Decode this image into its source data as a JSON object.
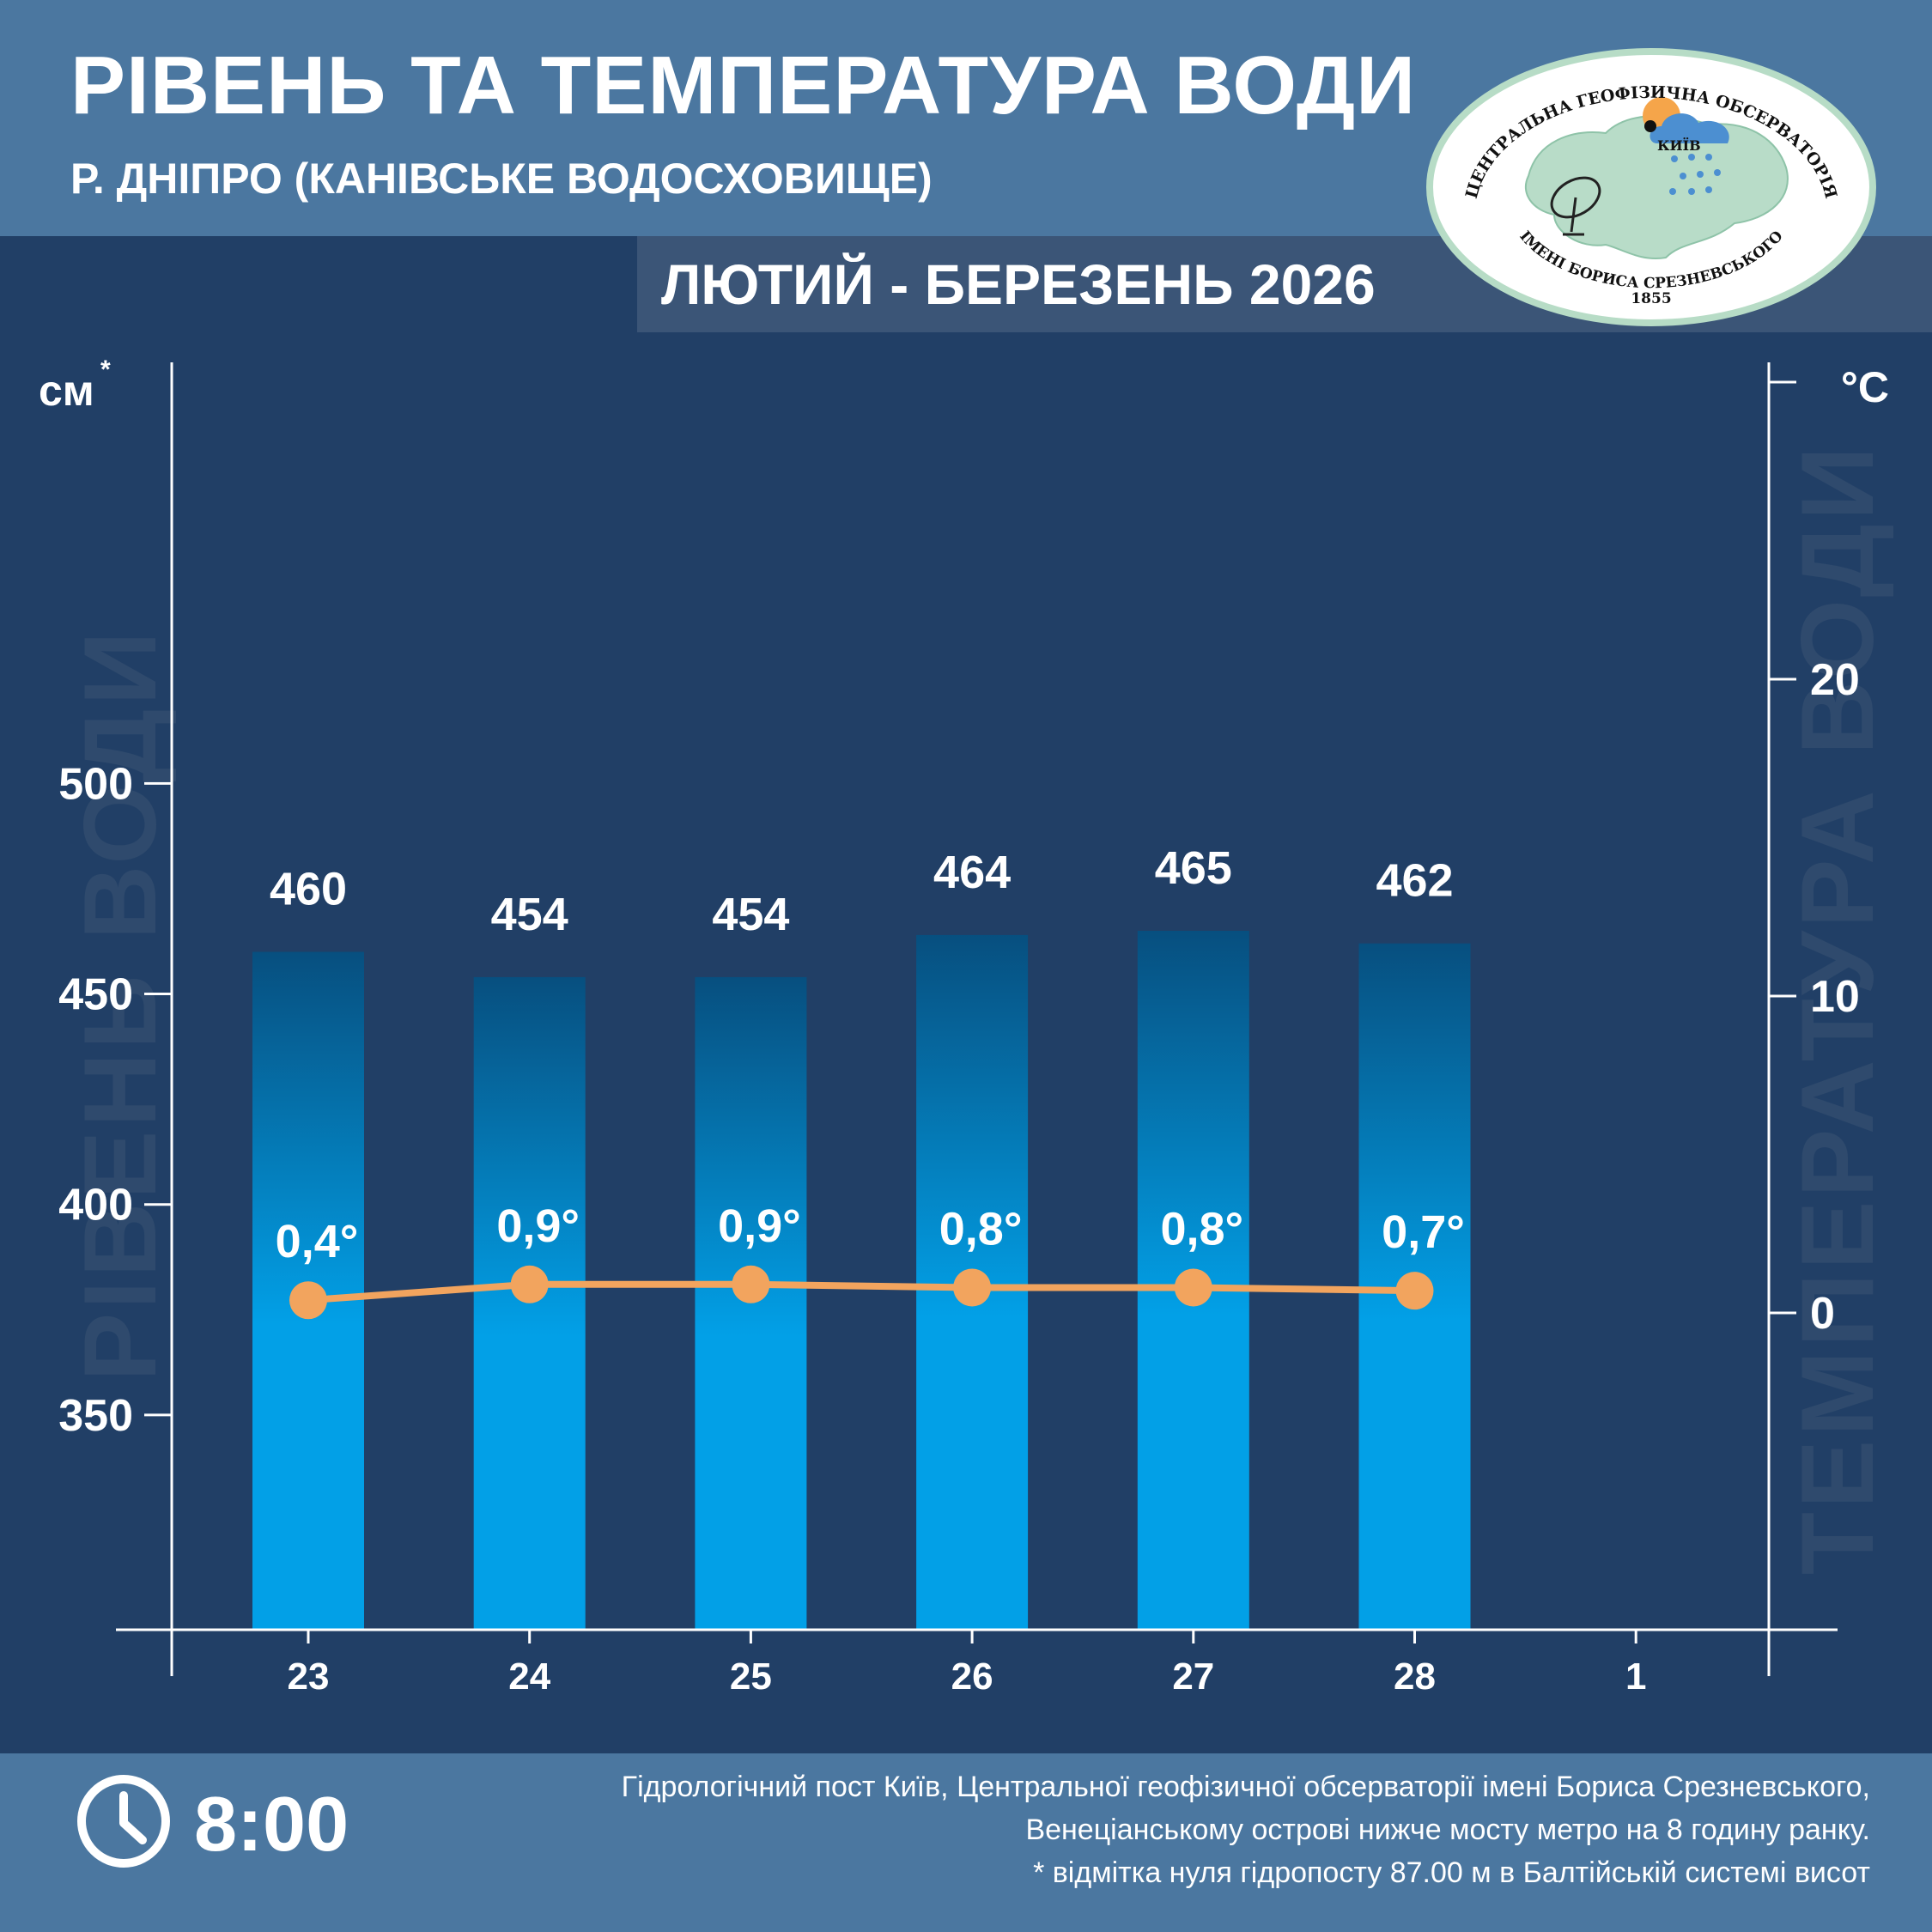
{
  "header": {
    "title": "РІВЕНЬ ТА ТЕМПЕРАТУРА ВОДИ",
    "subtitle": "Р. ДНІПРО (КАНІВСЬКЕ ВОДОСХОВИЩЕ)",
    "period": "ЛЮТИЙ - БЕРЕЗЕНЬ 2026"
  },
  "logo": {
    "top_text": "ЦЕНТРАЛЬНА ГЕОФІЗИЧНА ОБСЕРВАТОРІЯ",
    "bottom_text": "ІМЕНІ БОРИСА СРЕЗНЕВСЬКОГО",
    "year": "1855",
    "city": "КИЇВ"
  },
  "watermarks": {
    "left": "РІВЕНЬ ВОДИ",
    "right": "ТЕМПЕРАТУРА ВОДИ"
  },
  "chart_data": {
    "type": "bar",
    "title": "РІВЕНЬ ТА ТЕМПЕРАТУРА ВОДИ",
    "categories": [
      "23",
      "24",
      "25",
      "26",
      "27",
      "28",
      "1"
    ],
    "left_axis": {
      "unit": "см",
      "unit_mark": "*",
      "ticks": [
        350,
        400,
        450,
        500
      ],
      "ylim": [
        299,
        600
      ]
    },
    "right_axis": {
      "unit": "°С",
      "ticks": [
        0,
        10,
        20
      ],
      "ylim": [
        -10,
        30
      ]
    },
    "series": [
      {
        "name": "Рівень води",
        "type": "bar",
        "axis": "left",
        "values": [
          460,
          454,
          454,
          464,
          465,
          462,
          null
        ],
        "labels": [
          "460",
          "454",
          "454",
          "464",
          "465",
          "462",
          ""
        ]
      },
      {
        "name": "Температура води",
        "type": "line",
        "axis": "right",
        "values": [
          0.4,
          0.9,
          0.9,
          0.8,
          0.8,
          0.7,
          null
        ],
        "labels": [
          "0,4°",
          "0,9°",
          "0,9°",
          "0,8°",
          "0,8°",
          "0,7°",
          ""
        ]
      }
    ],
    "colors": {
      "bar_top": "#074f7f",
      "bar_bottom": "#02a0e7",
      "line": "#f2a45e",
      "axis": "#ffffff"
    }
  },
  "footer": {
    "time": "8:00",
    "note_lines": [
      "Гідрологічний пост Київ, Центральної геофізичної обсерваторії імені Бориса Срезневського,",
      "Венеціанському острові нижче мосту метро  на 8 годину ранку.",
      "* відмітка нуля гідропосту 87.00 м в Балтійській системі висот"
    ]
  }
}
